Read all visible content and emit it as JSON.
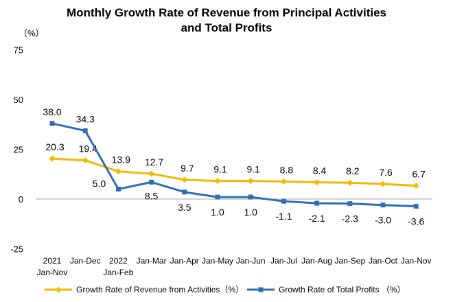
{
  "chart_data": {
    "type": "line",
    "title": [
      "Monthly Growth Rate of Revenue from Principal Activities",
      "and Total Profits"
    ],
    "ylabel": "（%）",
    "ylim": [
      -25,
      75
    ],
    "yticks": [
      75,
      50,
      25,
      0,
      -25
    ],
    "grid": false,
    "legend_position": "bottom",
    "categories": [
      [
        "2021",
        "Jan-Nov"
      ],
      [
        "Jan-Dec"
      ],
      [
        "2022",
        "Jan-Feb"
      ],
      [
        "Jan-Mar"
      ],
      [
        "Jan-Apr"
      ],
      [
        "Jan-May"
      ],
      [
        "Jan-Jun"
      ],
      [
        "Jan-Jul"
      ],
      [
        "Jan-Aug"
      ],
      [
        "Jan-Sep"
      ],
      [
        "Jan-Oct"
      ],
      [
        "Jan-Nov"
      ]
    ],
    "series": [
      {
        "name": "Growth Rate of Revenue from Activities（%）",
        "color": "#F5B800",
        "marker": "diamond",
        "values": [
          20.3,
          19.4,
          13.9,
          12.7,
          9.7,
          9.1,
          9.1,
          8.8,
          8.4,
          8.2,
          7.6,
          6.7
        ],
        "labels": [
          "20.3",
          "19.4",
          "13.9",
          "12.7",
          "9.7",
          "9.1",
          "9.1",
          "8.8",
          "8.4",
          "8.2",
          "7.6",
          "6.7"
        ]
      },
      {
        "name": "Growth Rate of Total Profits （%）",
        "color": "#2F6DB5",
        "marker": "square",
        "values": [
          38.0,
          34.3,
          5.0,
          8.5,
          3.5,
          1.0,
          1.0,
          -1.1,
          -2.1,
          -2.3,
          -3.0,
          -3.6
        ],
        "labels": [
          "38.0",
          "34.3",
          "5.0",
          "8.5",
          "3.5",
          "1.0",
          "1.0",
          "-1.1",
          "-2.1",
          "-2.3",
          "-3.0",
          "-3.6"
        ]
      }
    ]
  }
}
